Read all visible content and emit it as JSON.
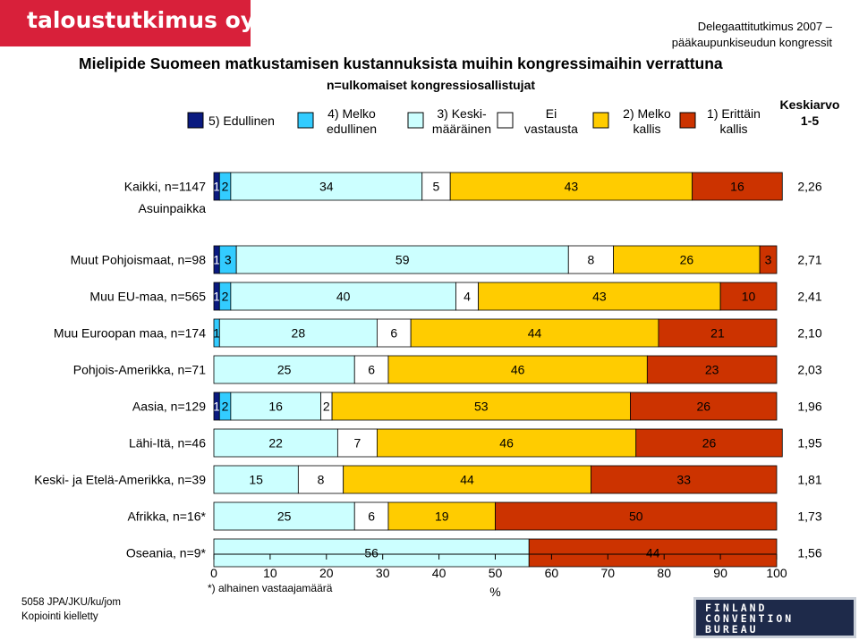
{
  "header": {
    "logo": "taloustutkimus oy",
    "event_line1": "Delegaattitutkimus 2007 –",
    "event_line2": "pääkaupunkiseudun kongressit"
  },
  "footer": {
    "code": "5058 JPA/JKU/ku/jom",
    "copy": "Kopiointi kielletty",
    "logo": [
      "FINLAND",
      "CONVENTION",
      "BUREAU"
    ]
  },
  "colors": [
    "#0a1a80",
    "#33ccff",
    "#ccffff",
    "#ffffff",
    "#ffcc00",
    "#cc3300"
  ],
  "chart_data": {
    "type": "bar",
    "orientation": "horizontal-stacked-100",
    "title": "Mielipide Suomeen matkustamisen kustannuksista muihin kongressimaihin verrattuna",
    "subtitle": "n=ulkomaiset kongressiosallistujat",
    "xlabel": "%",
    "xlim": [
      0,
      100
    ],
    "xticks": [
      "0",
      "10",
      "20",
      "30",
      "40",
      "50",
      "60",
      "70",
      "80",
      "90",
      "100"
    ],
    "note": "*) alhainen vastaajamäärä",
    "group_label": "Asuinpaikka",
    "mean_header": [
      "Keskiarvo",
      "1-5"
    ],
    "legend": [
      [
        "5) Edullinen"
      ],
      [
        "4) Melko",
        "edullinen"
      ],
      [
        "3) Keski-",
        "määräinen"
      ],
      [
        "Ei",
        "vastausta"
      ],
      [
        "2) Melko",
        "kallis"
      ],
      [
        "1) Erittäin",
        "kallis"
      ]
    ],
    "categories": [
      "Kaikki, n=1147",
      "Muut Pohjoismaat, n=98",
      "Muu EU-maa, n=565",
      "Muu Euroopan maa, n=174",
      "Pohjois-Amerikka, n=71",
      "Aasia, n=129",
      "Lähi-Itä, n=46",
      "Keski- ja Etelä-Amerikka, n=39",
      "Afrikka, n=16*",
      "Oseania, n=9*"
    ],
    "series": [
      {
        "name": "5) Edullinen",
        "values": [
          1,
          1,
          1,
          0,
          0,
          1,
          0,
          0,
          0,
          0
        ]
      },
      {
        "name": "4) Melko edullinen",
        "values": [
          2,
          3,
          2,
          1,
          0,
          2,
          0,
          0,
          0,
          0
        ]
      },
      {
        "name": "3) Keskimääräinen",
        "values": [
          34,
          59,
          40,
          28,
          25,
          16,
          22,
          15,
          25,
          56
        ]
      },
      {
        "name": "Ei vastausta",
        "values": [
          5,
          8,
          4,
          6,
          6,
          2,
          7,
          8,
          6,
          0
        ]
      },
      {
        "name": "2) Melko kallis",
        "values": [
          43,
          26,
          43,
          44,
          46,
          53,
          46,
          44,
          19,
          0
        ]
      },
      {
        "name": "1) Erittäin kallis",
        "values": [
          16,
          3,
          10,
          21,
          23,
          26,
          26,
          33,
          50,
          44
        ]
      }
    ],
    "means": [
      "2,26",
      "2,71",
      "2,41",
      "2,10",
      "2,03",
      "1,96",
      "1,95",
      "1,81",
      "1,73",
      "1,56"
    ]
  }
}
